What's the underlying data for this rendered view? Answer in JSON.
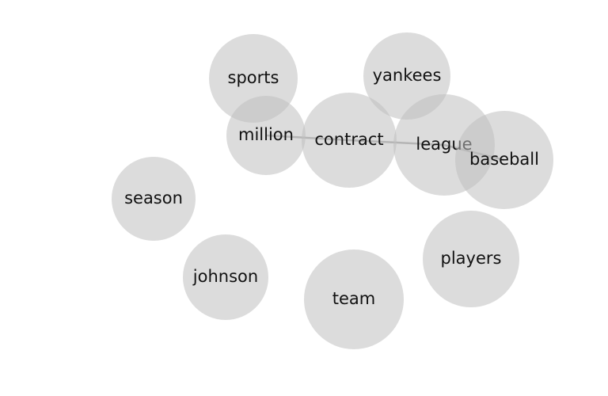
{
  "graph": {
    "colors": {
      "bubble": "#bfbfbf",
      "edge": "#8c8c8c",
      "text": "#111111"
    },
    "nodes": [
      {
        "id": "sports",
        "label": "sports"
      },
      {
        "id": "yankees",
        "label": "yankees"
      },
      {
        "id": "million",
        "label": "million"
      },
      {
        "id": "contract",
        "label": "contract"
      },
      {
        "id": "league",
        "label": "league"
      },
      {
        "id": "baseball",
        "label": "baseball"
      },
      {
        "id": "season",
        "label": "season"
      },
      {
        "id": "players",
        "label": "players"
      },
      {
        "id": "johnson",
        "label": "johnson"
      },
      {
        "id": "team",
        "label": "team"
      }
    ],
    "edges": [
      {
        "source": "million",
        "target": "contract"
      },
      {
        "source": "contract",
        "target": "league"
      },
      {
        "source": "league",
        "target": "baseball"
      }
    ]
  }
}
